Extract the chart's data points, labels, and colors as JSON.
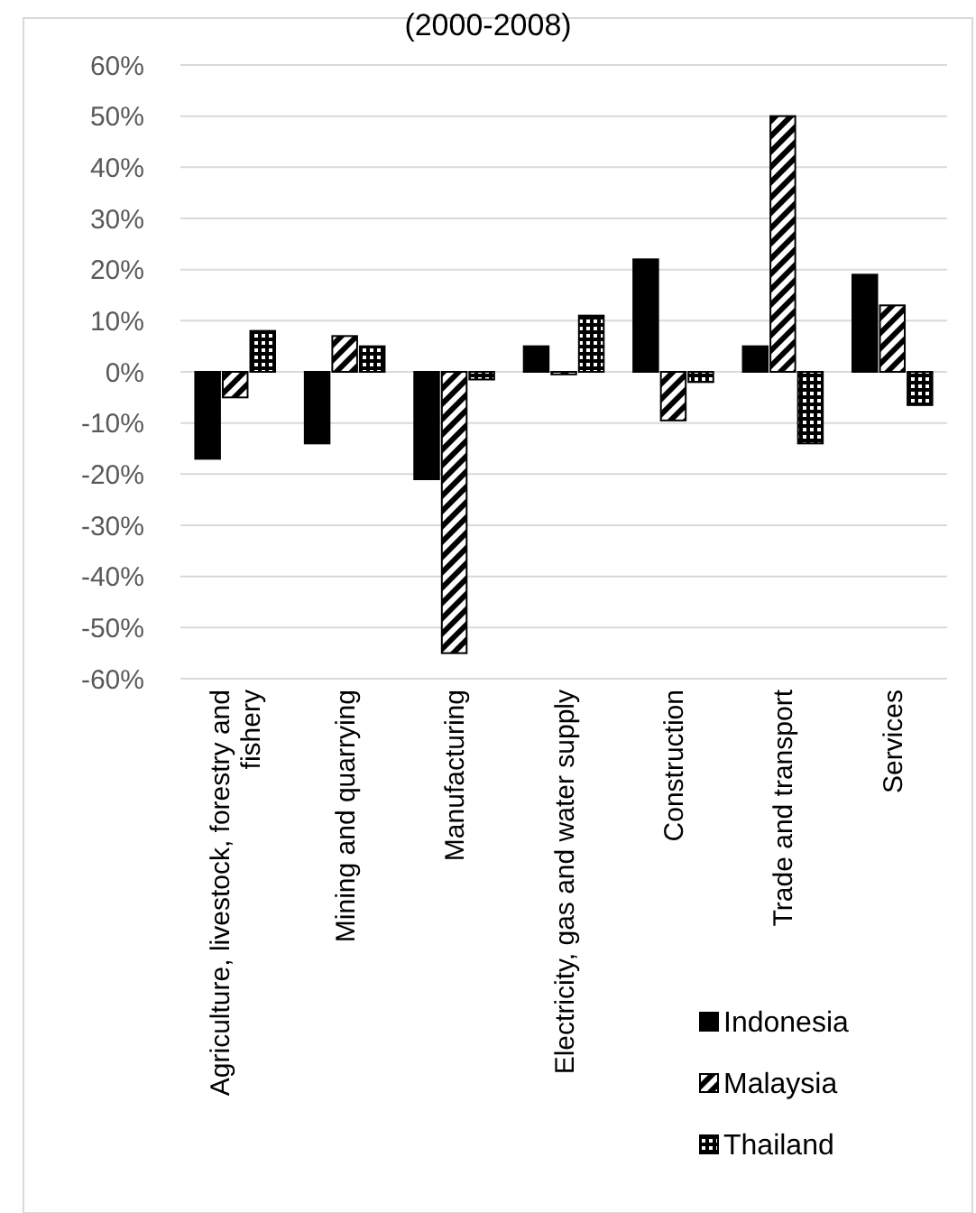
{
  "chart_data": {
    "type": "bar",
    "title": "(2000-2008)",
    "categories": [
      "Agriculture, livestock, forestry and fishery",
      "Mining and quarrying",
      "Manufacturing",
      "Electricity, gas and water supply",
      "Construction",
      "Trade and transport",
      "Services"
    ],
    "series": [
      {
        "name": "Indonesia",
        "color": "#000000",
        "values": [
          -17,
          -14,
          -21,
          5,
          22,
          5,
          19
        ]
      },
      {
        "name": "Malaysia",
        "color": "#000000",
        "values": [
          -5,
          7,
          -55,
          -0.5,
          -9.5,
          50,
          13
        ]
      },
      {
        "name": "Thailand",
        "color": "#000000",
        "values": [
          8,
          5,
          -1.5,
          11,
          -2,
          -14,
          -6.5
        ]
      }
    ],
    "ylim": [
      -60,
      60
    ],
    "yticks": [
      {
        "value": -60,
        "label": "-60%"
      },
      {
        "value": -50,
        "label": "-50%"
      },
      {
        "value": -40,
        "label": "-40%"
      },
      {
        "value": -30,
        "label": "-30%"
      },
      {
        "value": -20,
        "label": "-20%"
      },
      {
        "value": -10,
        "label": "-10%"
      },
      {
        "value": 0,
        "label": "0%"
      },
      {
        "value": 10,
        "label": "10%"
      },
      {
        "value": 20,
        "label": "20%"
      },
      {
        "value": 30,
        "label": "30%"
      },
      {
        "value": 40,
        "label": "40%"
      },
      {
        "value": 50,
        "label": "50%"
      },
      {
        "value": 60,
        "label": "60%"
      }
    ],
    "grid": "y",
    "legend": "bottom right"
  }
}
